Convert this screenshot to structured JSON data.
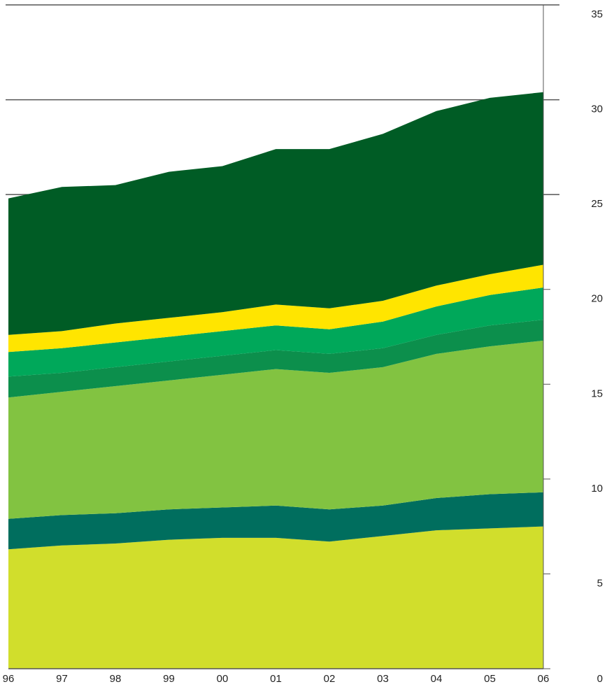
{
  "chart_data": {
    "type": "area",
    "stacked": true,
    "categories": [
      "96",
      "97",
      "98",
      "99",
      "00",
      "01",
      "02",
      "03",
      "04",
      "05",
      "06"
    ],
    "ylim": [
      0,
      35
    ],
    "y_ticks": [
      "0",
      "5",
      "10",
      "15",
      "20",
      "25",
      "30",
      "35"
    ],
    "gridlines_at": [
      25,
      30,
      35
    ],
    "y_axis_side": "right",
    "series": [
      {
        "color": "#d1de2c",
        "values": [
          6.3,
          6.5,
          6.6,
          6.8,
          6.9,
          6.9,
          6.7,
          7.0,
          7.3,
          7.4,
          7.5
        ]
      },
      {
        "color": "#006e5e",
        "values": [
          1.6,
          1.6,
          1.6,
          1.6,
          1.6,
          1.7,
          1.7,
          1.6,
          1.7,
          1.8,
          1.8
        ]
      },
      {
        "color": "#82c341",
        "values": [
          6.4,
          6.5,
          6.7,
          6.8,
          7.0,
          7.2,
          7.2,
          7.3,
          7.6,
          7.8,
          8.0
        ]
      },
      {
        "color": "#0c8f4c",
        "values": [
          1.1,
          1.0,
          1.0,
          1.0,
          1.0,
          1.0,
          1.0,
          1.0,
          1.0,
          1.1,
          1.1
        ]
      },
      {
        "color": "#00a85a",
        "values": [
          1.3,
          1.3,
          1.3,
          1.3,
          1.3,
          1.3,
          1.3,
          1.4,
          1.5,
          1.6,
          1.7
        ]
      },
      {
        "color": "#ffe500",
        "values": [
          0.9,
          0.9,
          1.0,
          1.0,
          1.0,
          1.1,
          1.1,
          1.1,
          1.1,
          1.1,
          1.2
        ]
      },
      {
        "color": "#005c25",
        "values": [
          7.2,
          7.6,
          7.3,
          7.7,
          7.7,
          8.2,
          8.4,
          8.8,
          9.2,
          9.3,
          9.1
        ]
      }
    ]
  }
}
